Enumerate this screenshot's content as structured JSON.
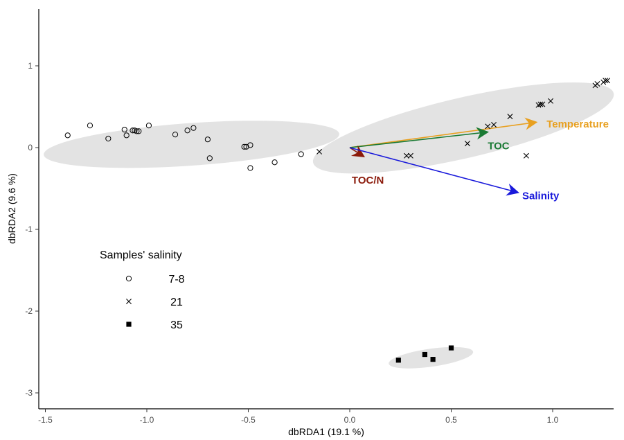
{
  "chart_data": {
    "type": "scatter",
    "xlabel": "dbRDA1 (19.1 %)",
    "ylabel": "dbRDA2 (9.6 %)",
    "xlim": [
      -1.55,
      1.35
    ],
    "ylim": [
      -3.3,
      1.7
    ],
    "xticks": [
      -1.5,
      -1.0,
      -0.5,
      0.0,
      0.5,
      1.0
    ],
    "xtick_labels": [
      "-1.5",
      "-1.0",
      "-0.5",
      "0.0",
      "0.5",
      "1.0"
    ],
    "yticks": [
      -3,
      -2,
      -1,
      0,
      1
    ],
    "ytick_labels": [
      "-3",
      "-2",
      "-1",
      "0",
      "1"
    ],
    "grid": false,
    "legend": {
      "title": "Samples' salinity",
      "position": "bottom-left",
      "entries": [
        {
          "label": "7-8",
          "marker": "circle"
        },
        {
          "label": "21",
          "marker": "cross"
        },
        {
          "label": "35",
          "marker": "square"
        }
      ]
    },
    "series": [
      {
        "name": "7-8",
        "marker": "circle",
        "points": [
          [
            -1.39,
            0.15
          ],
          [
            -1.28,
            0.27
          ],
          [
            -1.19,
            0.11
          ],
          [
            -1.11,
            0.22
          ],
          [
            -1.1,
            0.15
          ],
          [
            -1.07,
            0.21
          ],
          [
            -1.06,
            0.21
          ],
          [
            -1.05,
            0.2
          ],
          [
            -1.04,
            0.2
          ],
          [
            -0.99,
            0.27
          ],
          [
            -0.86,
            0.16
          ],
          [
            -0.8,
            0.21
          ],
          [
            -0.77,
            0.24
          ],
          [
            -0.7,
            0.1
          ],
          [
            -0.69,
            -0.13
          ],
          [
            -0.52,
            0.01
          ],
          [
            -0.51,
            0.01
          ],
          [
            -0.49,
            0.03
          ],
          [
            -0.49,
            -0.25
          ],
          [
            -0.37,
            -0.18
          ],
          [
            -0.24,
            -0.08
          ]
        ]
      },
      {
        "name": "21",
        "marker": "cross",
        "points": [
          [
            -0.15,
            -0.05
          ],
          [
            0.28,
            -0.1
          ],
          [
            0.3,
            -0.1
          ],
          [
            0.58,
            0.05
          ],
          [
            0.68,
            0.26
          ],
          [
            0.71,
            0.28
          ],
          [
            0.79,
            0.38
          ],
          [
            0.87,
            -0.1
          ],
          [
            0.93,
            0.52
          ],
          [
            0.94,
            0.53
          ],
          [
            0.95,
            0.53
          ],
          [
            0.99,
            0.57
          ],
          [
            1.21,
            0.76
          ],
          [
            1.22,
            0.78
          ],
          [
            1.25,
            0.8
          ],
          [
            1.26,
            0.82
          ],
          [
            1.27,
            0.82
          ]
        ]
      },
      {
        "name": "35",
        "marker": "square",
        "points": [
          [
            0.24,
            -2.6
          ],
          [
            0.37,
            -2.53
          ],
          [
            0.41,
            -2.59
          ],
          [
            0.5,
            -2.45
          ]
        ]
      }
    ],
    "ellipses": [
      {
        "group": "7-8",
        "center": [
          -0.78,
          0.04
        ],
        "rx": 0.73,
        "ry": 0.26,
        "angle_deg": -4
      },
      {
        "group": "21",
        "center": [
          0.56,
          0.24
        ],
        "rx": 0.76,
        "ry": 0.37,
        "angle_deg": -13
      },
      {
        "group": "35",
        "center": [
          0.4,
          -2.57
        ],
        "rx": 0.21,
        "ry": 0.11,
        "angle_deg": -8
      }
    ],
    "vectors": [
      {
        "label": "Temperature",
        "end": [
          0.92,
          0.31
        ],
        "color": "#e8a020",
        "label_pos": [
          0.97,
          0.29
        ]
      },
      {
        "label": "TOC",
        "end": [
          0.68,
          0.19
        ],
        "color": "#1a7a34",
        "label_pos": [
          0.68,
          0.02
        ]
      },
      {
        "label": "TOC/N",
        "end": [
          0.07,
          -0.11
        ],
        "color": "#8b1a0a",
        "label_pos": [
          0.01,
          -0.4
        ]
      },
      {
        "label": "Salinity",
        "end": [
          0.83,
          -0.55
        ],
        "color": "#1a1adb",
        "label_pos": [
          0.85,
          -0.59
        ]
      }
    ]
  }
}
